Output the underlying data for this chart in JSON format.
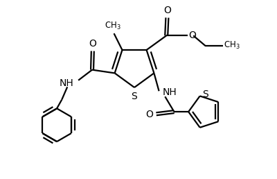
{
  "bg_color": "#ffffff",
  "line_color": "#000000",
  "lw": 1.6,
  "figsize": [
    4.0,
    2.58
  ],
  "dpi": 100,
  "xlim": [
    0,
    10
  ],
  "ylim": [
    0,
    6.45
  ]
}
